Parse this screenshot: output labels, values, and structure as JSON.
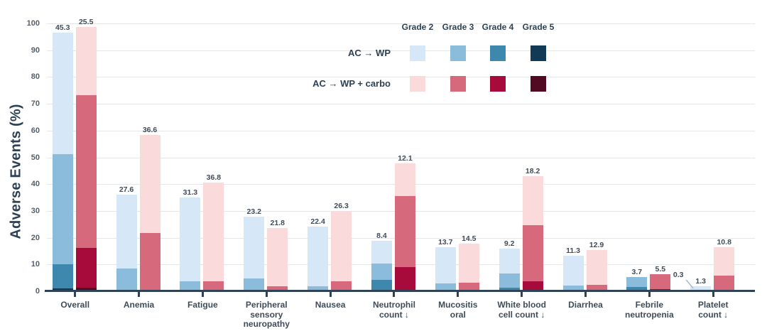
{
  "chart_data": {
    "type": "bar",
    "stacked": true,
    "grouped": true,
    "title": "",
    "ylabel": "Adverse Events (%)",
    "xlabel": "",
    "ylim": [
      0,
      100
    ],
    "ytick_step": 10,
    "grid": true,
    "unit": "%",
    "legend": {
      "position": "top-right",
      "grade_headers": [
        "Grade 2",
        "Grade 3",
        "Grade 4",
        "Grade 5"
      ],
      "arms": [
        {
          "name": "AC → WP",
          "colors": [
            "#d6e8f7",
            "#8cbcdc",
            "#3e88ad",
            "#113a56"
          ]
        },
        {
          "name": "AC → WP + carbo",
          "colors": [
            "#fbdadb",
            "#d6697b",
            "#a70b3c",
            "#520a23"
          ]
        }
      ]
    },
    "style": {
      "axis_color": "#2f4256",
      "grid_color": "#e5e6e8",
      "label_color": "#3f4c59",
      "callout_line_color": "#a7b8c6"
    },
    "categories": [
      {
        "label_lines": [
          "Overall"
        ],
        "arm1": [
          {
            "grade": "Grade 5",
            "value": 0.8,
            "label_color": "#ffffff"
          },
          {
            "grade": "Grade 4",
            "value": 8.9
          },
          {
            "grade": "Grade 3",
            "value": 41.3
          },
          {
            "grade": "Grade 2",
            "value": 45.3
          }
        ],
        "arm2": [
          {
            "grade": "Grade 5",
            "value": 1.1,
            "label_color": "#ffffff"
          },
          {
            "grade": "Grade 4",
            "value": 14.7
          },
          {
            "grade": "Grade 3",
            "value": 57.1
          },
          {
            "grade": "Grade 2",
            "value": 25.5
          }
        ]
      },
      {
        "label_lines": [
          "Anemia"
        ],
        "arm1": [
          {
            "grade": "Grade 3",
            "value": 8.2
          },
          {
            "grade": "Grade 2",
            "value": 27.6
          }
        ],
        "arm2": [
          {
            "grade": "Grade 3",
            "value": 21.6
          },
          {
            "grade": "Grade 2",
            "value": 36.6
          }
        ]
      },
      {
        "label_lines": [
          "Fatigue"
        ],
        "arm1": [
          {
            "grade": "Grade 3",
            "value": 3.4
          },
          {
            "grade": "Grade 2",
            "value": 31.3
          }
        ],
        "arm2": [
          {
            "grade": "Grade 3",
            "value": 3.4
          },
          {
            "grade": "Grade 2",
            "value": 36.8
          }
        ]
      },
      {
        "label_lines": [
          "Peripheral",
          "sensory",
          "neuropathy"
        ],
        "arm1": [
          {
            "grade": "Grade 3",
            "value": 4.5
          },
          {
            "grade": "Grade 2",
            "value": 23.2
          }
        ],
        "arm2": [
          {
            "grade": "Grade 3",
            "value": 1.6
          },
          {
            "grade": "Grade 2",
            "value": 21.8
          }
        ]
      },
      {
        "label_lines": [
          "Nausea"
        ],
        "arm1": [
          {
            "grade": "Grade 3",
            "value": 1.6
          },
          {
            "grade": "Grade 2",
            "value": 22.4
          }
        ],
        "arm2": [
          {
            "grade": "Grade 3",
            "value": 3.4
          },
          {
            "grade": "Grade 2",
            "value": 26.3
          }
        ]
      },
      {
        "label_lines": [
          "Neutrophil",
          "count ↓"
        ],
        "arm1": [
          {
            "grade": "Grade 4",
            "value": 3.9
          },
          {
            "grade": "Grade 3",
            "value": 6.3
          },
          {
            "grade": "Grade 2",
            "value": 8.4
          }
        ],
        "arm2": [
          {
            "grade": "Grade 4",
            "value": 8.7
          },
          {
            "grade": "Grade 3",
            "value": 26.6
          },
          {
            "grade": "Grade 2",
            "value": 12.1
          }
        ]
      },
      {
        "label_lines": [
          "Mucositis",
          "oral"
        ],
        "arm1": [
          {
            "grade": "Grade 3",
            "value": 2.6
          },
          {
            "grade": "Grade 2",
            "value": 13.7
          }
        ],
        "arm2": [
          {
            "grade": "Grade 3",
            "value": 2.9
          },
          {
            "grade": "Grade 2",
            "value": 14.5
          }
        ]
      },
      {
        "label_lines": [
          "White blood",
          "cell count ↓"
        ],
        "arm1": [
          {
            "grade": "Grade 4",
            "value": 1.1
          },
          {
            "grade": "Grade 3",
            "value": 5.3
          },
          {
            "grade": "Grade 2",
            "value": 9.2
          }
        ],
        "arm2": [
          {
            "grade": "Grade 4",
            "value": 3.4
          },
          {
            "grade": "Grade 3",
            "value": 21.1
          },
          {
            "grade": "Grade 2",
            "value": 18.2
          }
        ]
      },
      {
        "label_lines": [
          "Diarrhea"
        ],
        "arm1": [
          {
            "grade": "Grade 3",
            "value": 1.8
          },
          {
            "grade": "Grade 2",
            "value": 11.3
          }
        ],
        "arm2": [
          {
            "grade": "Grade 3",
            "value": 2.1
          },
          {
            "grade": "Grade 2",
            "value": 12.9
          }
        ]
      },
      {
        "label_lines": [
          "Febrile",
          "neutropenia"
        ],
        "arm1": [
          {
            "grade": "Grade 4",
            "value": 1.3
          },
          {
            "grade": "Grade 3",
            "value": 3.7
          }
        ],
        "arm2": [
          {
            "grade": "Grade 4",
            "value": 0.5,
            "label_color": "#ffffff"
          },
          {
            "grade": "Grade 3",
            "value": 5.5
          }
        ]
      },
      {
        "label_lines": [
          "Platelet",
          "count ↓"
        ],
        "arm1": [
          {
            "grade": "Grade 3",
            "value": 0.3,
            "callout": true
          },
          {
            "grade": "Grade 2",
            "value": 1.3
          }
        ],
        "arm2": [
          {
            "grade": "Grade 3",
            "value": 5.5
          },
          {
            "grade": "Grade 2",
            "value": 10.8
          }
        ]
      }
    ]
  }
}
